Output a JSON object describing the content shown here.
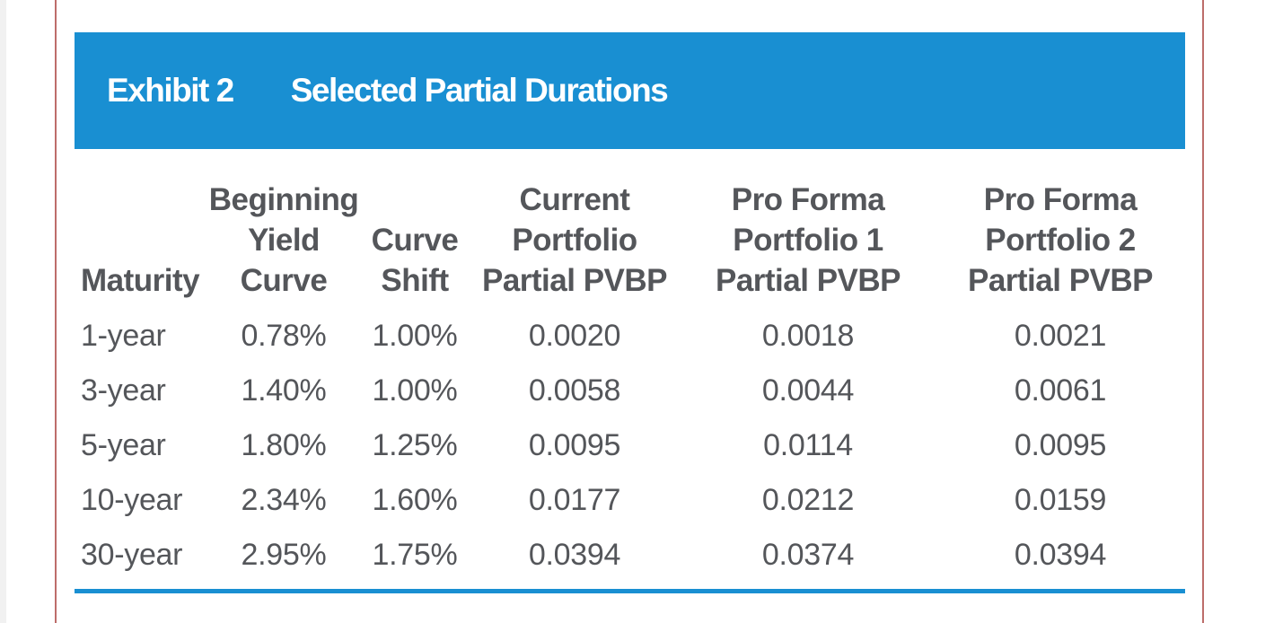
{
  "exhibit": {
    "label": "Exhibit 2",
    "title": "Selected Partial Durations"
  },
  "table": {
    "columns": [
      {
        "id": "maturity",
        "header_lines": [
          "Maturity"
        ]
      },
      {
        "id": "beginning-yield-curve",
        "header_lines": [
          "Beginning",
          "Yield",
          "Curve"
        ]
      },
      {
        "id": "curve-shift",
        "header_lines": [
          "Curve",
          "Shift"
        ]
      },
      {
        "id": "current-portfolio-partial-pvbp",
        "header_lines": [
          "Current",
          "Portfolio",
          "Partial PVBP"
        ]
      },
      {
        "id": "pro-forma-portfolio-1-partial-pvbp",
        "header_lines": [
          "Pro Forma",
          "Portfolio 1",
          "Partial PVBP"
        ]
      },
      {
        "id": "pro-forma-portfolio-2-partial-pvbp",
        "header_lines": [
          "Pro Forma",
          "Portfolio 2",
          "Partial PVBP"
        ]
      }
    ],
    "rows": [
      [
        "1-year",
        "0.78%",
        "1.00%",
        "0.0020",
        "0.0018",
        "0.0021"
      ],
      [
        "3-year",
        "1.40%",
        "1.00%",
        "0.0058",
        "0.0044",
        "0.0061"
      ],
      [
        "5-year",
        "1.80%",
        "1.25%",
        "0.0095",
        "0.0114",
        "0.0095"
      ],
      [
        "10-year",
        "2.34%",
        "1.60%",
        "0.0177",
        "0.0212",
        "0.0159"
      ],
      [
        "30-year",
        "2.95%",
        "1.75%",
        "0.0394",
        "0.0374",
        "0.0394"
      ]
    ]
  },
  "colors": {
    "banner_blue": "#198fd2",
    "underline_blue": "#198fd2",
    "banner_text": "#ffffff",
    "text_gray": "#54565a",
    "rule_red": "#bd6d6a",
    "page_edge_gray": "#f1f1f1"
  }
}
